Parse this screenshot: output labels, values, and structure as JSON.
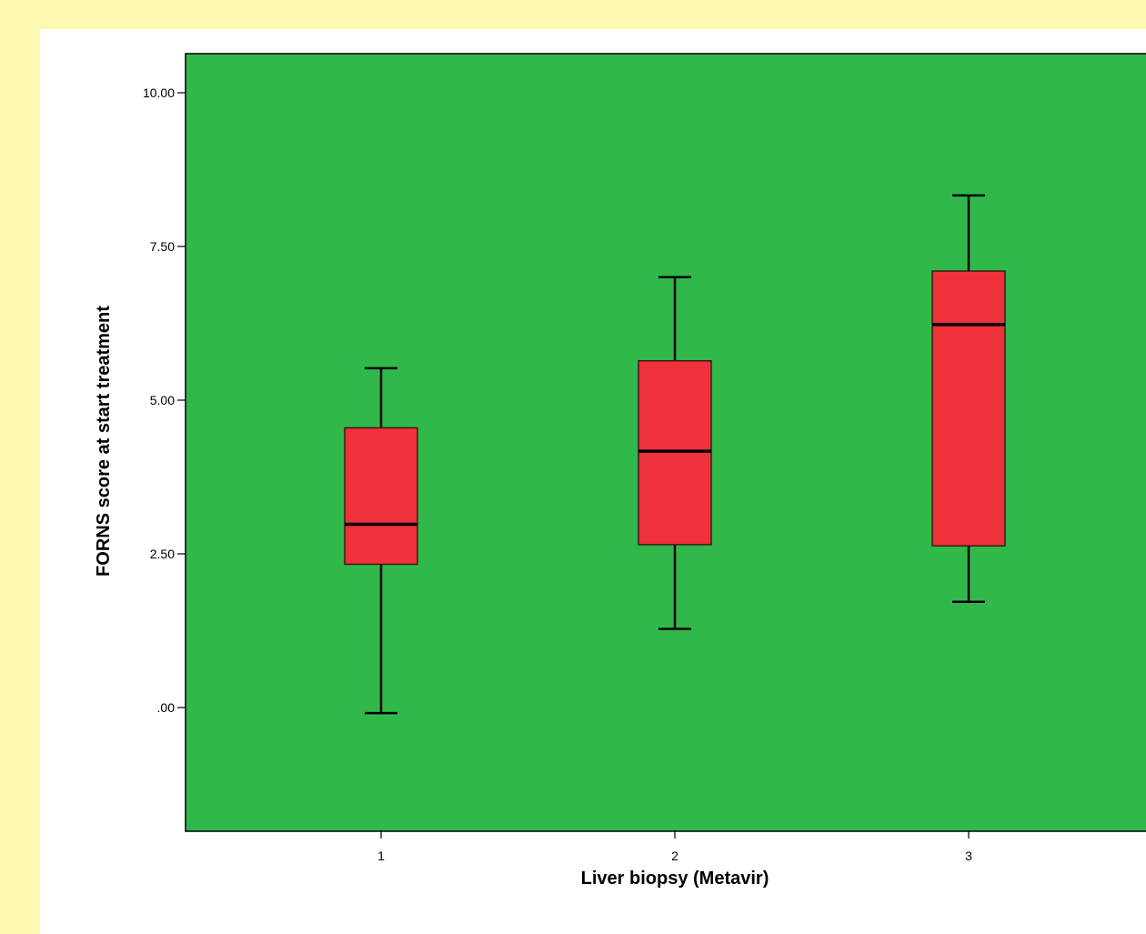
{
  "chart_data": {
    "type": "box",
    "xlabel": "Liver biopsy (Metavir)",
    "ylabel": "FORNS score at start treatment",
    "categories": [
      "1",
      "2",
      "3"
    ],
    "ylim": [
      -2.0,
      10.65
    ],
    "yticks": [
      {
        "value": 0,
        "label": ".00"
      },
      {
        "value": 2.5,
        "label": "2.50"
      },
      {
        "value": 5,
        "label": "5.00"
      },
      {
        "value": 7.5,
        "label": "7.50"
      },
      {
        "value": 10,
        "label": "10.00"
      }
    ],
    "boxes": [
      {
        "category": "1",
        "whisker_low": -0.09,
        "q1": 2.33,
        "median": 2.98,
        "q3": 4.55,
        "whisker_high": 5.52
      },
      {
        "category": "2",
        "whisker_low": 1.28,
        "q1": 2.65,
        "median": 4.17,
        "q3": 5.64,
        "whisker_high": 7.0
      },
      {
        "category": "3",
        "whisker_low": 1.72,
        "q1": 2.63,
        "median": 6.23,
        "q3": 7.1,
        "whisker_high": 8.33
      }
    ],
    "grid": false,
    "legend": false,
    "colors": {
      "page_background": "#fff8b0",
      "plot_background": "#31b84a",
      "box_fill": "#ef3139",
      "line": "#000000"
    }
  }
}
